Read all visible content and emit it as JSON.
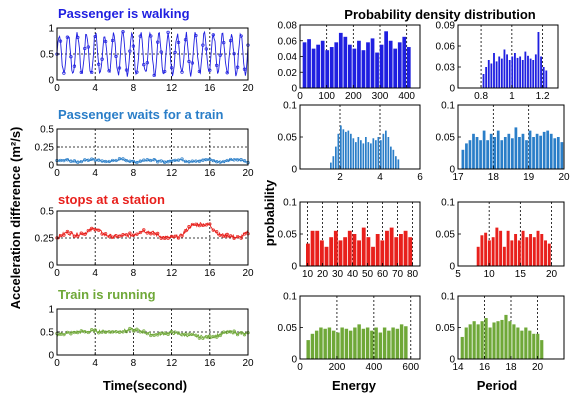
{
  "figure": {
    "header": "Probability density  distribution",
    "ylabel_left": "Acceleration difference (m²/s)",
    "xlabel_left": "Time(second)",
    "ylabel_mid": "probability",
    "xlabel_energy": "Energy",
    "xlabel_period": "Period"
  },
  "colors": {
    "walk": "#1f1fe0",
    "wait": "#2a7ec8",
    "stop": "#e8201c",
    "run": "#6fa838"
  },
  "chart_data": [
    {
      "type": "line",
      "id": "ts-walk",
      "title": "Passenger is walking",
      "color": "walk",
      "xlim": [
        0,
        20
      ],
      "ylim": [
        0,
        1
      ],
      "xticks": [
        0,
        4,
        8,
        12,
        16,
        20
      ],
      "yticks": [
        0,
        0.5,
        1
      ],
      "ytick_labels": [
        "0",
        "0.5",
        "1"
      ],
      "grid": true,
      "series": [
        {
          "mode": "periodic",
          "base": 0.5,
          "amp": 0.38,
          "period": 0.95,
          "noise": 0.06
        }
      ]
    },
    {
      "type": "line",
      "id": "ts-wait",
      "title": "Passenger waits for a train",
      "color": "wait",
      "xlim": [
        0,
        20
      ],
      "ylim": [
        0,
        0.5
      ],
      "xticks": [
        0,
        4,
        8,
        12,
        16,
        20
      ],
      "yticks": [
        0,
        0.25,
        0.5
      ],
      "ytick_labels": [
        "0",
        "0.25",
        "0.5"
      ],
      "grid": true,
      "series": [
        {
          "mode": "noise",
          "base": 0.06,
          "amp": 0.015,
          "noise": 0.015
        }
      ]
    },
    {
      "type": "line",
      "id": "ts-stop",
      "title": "stops at a station",
      "color": "stop",
      "xlim": [
        0,
        20
      ],
      "ylim": [
        0,
        0.5
      ],
      "xticks": [
        0,
        4,
        8,
        12,
        16,
        20
      ],
      "yticks": [
        0,
        0.25,
        0.5
      ],
      "ytick_labels": [
        "0",
        "0.25",
        "0.5"
      ],
      "grid": true,
      "series": [
        {
          "mode": "keypoints",
          "x": [
            0,
            1,
            2,
            3,
            4,
            5,
            6,
            7,
            8,
            9,
            10,
            11,
            12,
            13,
            14,
            15,
            16,
            17,
            18,
            19,
            20
          ],
          "y": [
            0.25,
            0.3,
            0.28,
            0.3,
            0.34,
            0.28,
            0.26,
            0.27,
            0.28,
            0.32,
            0.3,
            0.26,
            0.25,
            0.27,
            0.36,
            0.38,
            0.37,
            0.28,
            0.27,
            0.25,
            0.3
          ],
          "noise": 0.018
        }
      ]
    },
    {
      "type": "line",
      "id": "ts-run",
      "title": "Train is running",
      "color": "run",
      "xlim": [
        0,
        20
      ],
      "ylim": [
        0,
        1
      ],
      "xticks": [
        0,
        4,
        8,
        12,
        16,
        20
      ],
      "yticks": [
        0,
        0.5,
        1
      ],
      "ytick_labels": [
        "0",
        "0.5",
        "1"
      ],
      "grid": true,
      "series": [
        {
          "mode": "keypoints",
          "x": [
            0,
            2,
            4,
            6,
            8,
            10,
            12,
            14,
            16,
            18,
            20
          ],
          "y": [
            0.45,
            0.5,
            0.52,
            0.5,
            0.55,
            0.45,
            0.48,
            0.42,
            0.38,
            0.5,
            0.45
          ],
          "noise": 0.035
        }
      ]
    },
    {
      "type": "bar",
      "id": "e-walk",
      "color": "walk",
      "xlim": [
        0,
        450
      ],
      "ylim": [
        0,
        0.08
      ],
      "xticks": [
        0,
        100,
        200,
        300,
        400
      ],
      "yticks": [
        0,
        0.02,
        0.04,
        0.06,
        0.08
      ],
      "ytick_labels": [
        "0",
        "0.02",
        "0.04",
        "0.06",
        "0.08"
      ],
      "grid": true,
      "bins": {
        "start": 10,
        "width": 17,
        "values": [
          0.058,
          0.062,
          0.05,
          0.055,
          0.06,
          0.048,
          0.052,
          0.058,
          0.07,
          0.065,
          0.055,
          0.05,
          0.06,
          0.048,
          0.058,
          0.063,
          0.045,
          0.055,
          0.072,
          0.06,
          0.05,
          0.058,
          0.065,
          0.052
        ]
      }
    },
    {
      "type": "bar",
      "id": "p-walk",
      "color": "walk",
      "xlim": [
        0.65,
        1.3
      ],
      "ylim": [
        0,
        0.09
      ],
      "xticks": [
        0.8,
        1,
        1.2
      ],
      "yticks": [
        0,
        0.03,
        0.06,
        0.09
      ],
      "ytick_labels": [
        "0",
        "0.03",
        "0.06",
        "0.09"
      ],
      "grid": true,
      "bins": {
        "start": 0.81,
        "width": 0.017,
        "values": [
          0.02,
          0.03,
          0.04,
          0.035,
          0.05,
          0.038,
          0.045,
          0.042,
          0.055,
          0.048,
          0.04,
          0.045,
          0.05,
          0.043,
          0.045,
          0.04,
          0.052,
          0.046,
          0.042,
          0.04,
          0.048,
          0.08,
          0.045,
          0.03,
          0.025
        ]
      }
    },
    {
      "type": "bar",
      "id": "e-wait",
      "color": "wait",
      "xlim": [
        0,
        6
      ],
      "ylim": [
        0,
        0.1
      ],
      "xticks": [
        2,
        4,
        6
      ],
      "yticks": [
        0,
        0.05,
        0.1
      ],
      "ytick_labels": [
        "0",
        "0.05",
        "0.1"
      ],
      "grid": true,
      "bins": {
        "start": 1.5,
        "width": 0.125,
        "values": [
          0.01,
          0.02,
          0.035,
          0.055,
          0.068,
          0.062,
          0.058,
          0.06,
          0.055,
          0.048,
          0.042,
          0.05,
          0.045,
          0.04,
          0.05,
          0.042,
          0.04,
          0.048,
          0.045,
          0.05,
          0.045,
          0.055,
          0.06,
          0.05,
          0.035,
          0.03,
          0.02,
          0.015
        ]
      }
    },
    {
      "type": "bar",
      "id": "p-wait",
      "color": "wait",
      "xlim": [
        17,
        20
      ],
      "ylim": [
        0,
        0.1
      ],
      "xticks": [
        17,
        18,
        19,
        20
      ],
      "yticks": [
        0,
        0.05,
        0.1
      ],
      "ytick_labels": [
        "0",
        "0.05",
        "0.1"
      ],
      "grid": true,
      "bins": {
        "start": 17.1,
        "width": 0.1,
        "values": [
          0.03,
          0.04,
          0.045,
          0.055,
          0.05,
          0.045,
          0.06,
          0.045,
          0.055,
          0.05,
          0.06,
          0.045,
          0.05,
          0.055,
          0.048,
          0.065,
          0.05,
          0.055,
          0.045,
          0.06,
          0.05,
          0.055,
          0.052,
          0.058,
          0.06,
          0.055,
          0.048,
          0.05,
          0.042
        ]
      }
    },
    {
      "type": "bar",
      "id": "e-stop",
      "color": "stop",
      "xlim": [
        5,
        85
      ],
      "ylim": [
        0,
        0.1
      ],
      "xticks": [
        10,
        20,
        30,
        40,
        50,
        60,
        70,
        80
      ],
      "yticks": [
        0,
        0.05,
        0.1
      ],
      "ytick_labels": [
        "0",
        "0.05",
        "0.1"
      ],
      "grid": true,
      "bins": {
        "start": 9,
        "width": 3.1,
        "values": [
          0.035,
          0.055,
          0.055,
          0.04,
          0.03,
          0.045,
          0.055,
          0.04,
          0.045,
          0.055,
          0.05,
          0.04,
          0.06,
          0.045,
          0.03,
          0.05,
          0.04,
          0.055,
          0.06,
          0.045,
          0.05,
          0.055,
          0.045
        ]
      }
    },
    {
      "type": "bar",
      "id": "p-stop",
      "color": "stop",
      "xlim": [
        5,
        22
      ],
      "ylim": [
        0,
        0.1
      ],
      "xticks": [
        5,
        10,
        15,
        20
      ],
      "yticks": [
        0,
        0.05,
        0.1
      ],
      "ytick_labels": [
        "0",
        "0.05",
        "0.1"
      ],
      "grid": true,
      "bins": {
        "start": 8,
        "width": 0.6,
        "values": [
          0.03,
          0.048,
          0.052,
          0.04,
          0.045,
          0.06,
          0.055,
          0.03,
          0.055,
          0.04,
          0.05,
          0.04,
          0.055,
          0.045,
          0.05,
          0.045,
          0.055,
          0.05,
          0.04,
          0.035
        ]
      }
    },
    {
      "type": "bar",
      "id": "e-run",
      "color": "run",
      "xlim": [
        0,
        650
      ],
      "ylim": [
        0,
        0.1
      ],
      "xticks": [
        0,
        200,
        400,
        600
      ],
      "yticks": [
        0,
        0.05,
        0.1
      ],
      "ytick_labels": [
        "0",
        "0.05",
        "0.1"
      ],
      "grid": true,
      "bins": {
        "start": 35,
        "width": 23,
        "values": [
          0.03,
          0.04,
          0.045,
          0.05,
          0.048,
          0.05,
          0.045,
          0.042,
          0.05,
          0.048,
          0.045,
          0.05,
          0.055,
          0.048,
          0.05,
          0.045,
          0.05,
          0.042,
          0.05,
          0.045,
          0.05,
          0.048,
          0.055,
          0.052
        ]
      }
    },
    {
      "type": "bar",
      "id": "p-run",
      "color": "run",
      "xlim": [
        14,
        22
      ],
      "ylim": [
        0,
        0.1
      ],
      "xticks": [
        14,
        16,
        18,
        20
      ],
      "yticks": [
        0,
        0.05,
        0.1
      ],
      "ytick_labels": [
        "0",
        "0.05",
        "0.1"
      ],
      "grid": true,
      "bins": {
        "start": 14.2,
        "width": 0.3,
        "values": [
          0.035,
          0.05,
          0.055,
          0.06,
          0.055,
          0.06,
          0.065,
          0.05,
          0.058,
          0.06,
          0.062,
          0.07,
          0.06,
          0.055,
          0.05,
          0.045,
          0.05,
          0.045,
          0.04,
          0.04,
          0.03
        ]
      }
    }
  ]
}
